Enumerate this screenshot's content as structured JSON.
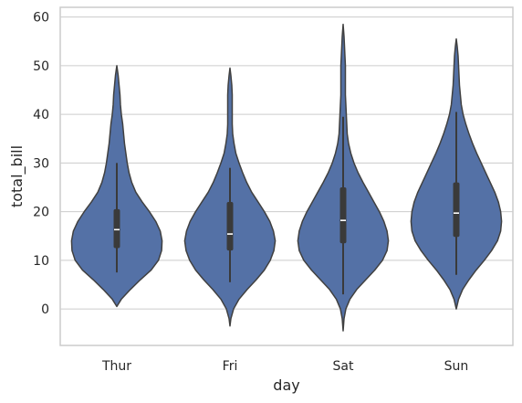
{
  "chart_data": {
    "type": "violin",
    "xlabel": "day",
    "ylabel": "total_bill",
    "categories": [
      "Thur",
      "Fri",
      "Sat",
      "Sun"
    ],
    "ylim": [
      -7.5,
      62
    ],
    "yticks": [
      0,
      10,
      20,
      30,
      40,
      50,
      60
    ],
    "grid": true,
    "colors": {
      "violin": "#5471a6",
      "outline": "#404040",
      "box": "#3a3a3a",
      "median": "#ffffff",
      "grid": "#cccccc",
      "frame": "#cccccc"
    },
    "violins": [
      {
        "category": "Thur",
        "range": [
          0.5,
          50
        ],
        "whisker": [
          7.5,
          30
        ],
        "q1": 12.5,
        "median": 16.3,
        "q3": 20.5,
        "density": [
          [
            0.5,
            0.0
          ],
          [
            2,
            0.1
          ],
          [
            4,
            0.3
          ],
          [
            6,
            0.52
          ],
          [
            8,
            0.76
          ],
          [
            10,
            0.92
          ],
          [
            12,
            0.99
          ],
          [
            14,
            1.0
          ],
          [
            16,
            0.96
          ],
          [
            18,
            0.86
          ],
          [
            20,
            0.72
          ],
          [
            22,
            0.56
          ],
          [
            24,
            0.42
          ],
          [
            26,
            0.33
          ],
          [
            28,
            0.27
          ],
          [
            30,
            0.23
          ],
          [
            32,
            0.2
          ],
          [
            34,
            0.17
          ],
          [
            36,
            0.15
          ],
          [
            38,
            0.13
          ],
          [
            40,
            0.1
          ],
          [
            42,
            0.08
          ],
          [
            44,
            0.07
          ],
          [
            46,
            0.05
          ],
          [
            48,
            0.03
          ],
          [
            50,
            0.0
          ]
        ]
      },
      {
        "category": "Fri",
        "range": [
          -3.5,
          49.5
        ],
        "whisker": [
          5.5,
          29
        ],
        "q1": 12,
        "median": 15.4,
        "q3": 22,
        "density": [
          [
            -3.5,
            0.0
          ],
          [
            -2,
            0.02
          ],
          [
            0,
            0.08
          ],
          [
            2,
            0.2
          ],
          [
            4,
            0.38
          ],
          [
            6,
            0.58
          ],
          [
            8,
            0.76
          ],
          [
            10,
            0.89
          ],
          [
            12,
            0.97
          ],
          [
            14,
            1.0
          ],
          [
            16,
            0.96
          ],
          [
            18,
            0.88
          ],
          [
            20,
            0.76
          ],
          [
            22,
            0.62
          ],
          [
            24,
            0.48
          ],
          [
            26,
            0.37
          ],
          [
            28,
            0.28
          ],
          [
            30,
            0.2
          ],
          [
            32,
            0.13
          ],
          [
            34,
            0.09
          ],
          [
            36,
            0.06
          ],
          [
            38,
            0.05
          ],
          [
            40,
            0.05
          ],
          [
            42,
            0.05
          ],
          [
            44,
            0.05
          ],
          [
            46,
            0.04
          ],
          [
            48,
            0.02
          ],
          [
            49.5,
            0.0
          ]
        ]
      },
      {
        "category": "Sat",
        "range": [
          -4.5,
          58.5
        ],
        "whisker": [
          3,
          39.5
        ],
        "q1": 13.5,
        "median": 18.2,
        "q3": 25,
        "density": [
          [
            -4.5,
            0.0
          ],
          [
            -2,
            0.02
          ],
          [
            0,
            0.06
          ],
          [
            2,
            0.15
          ],
          [
            4,
            0.3
          ],
          [
            6,
            0.5
          ],
          [
            8,
            0.7
          ],
          [
            10,
            0.87
          ],
          [
            12,
            0.97
          ],
          [
            14,
            1.0
          ],
          [
            16,
            0.97
          ],
          [
            18,
            0.9
          ],
          [
            20,
            0.8
          ],
          [
            22,
            0.68
          ],
          [
            24,
            0.56
          ],
          [
            26,
            0.44
          ],
          [
            28,
            0.33
          ],
          [
            30,
            0.24
          ],
          [
            32,
            0.17
          ],
          [
            34,
            0.12
          ],
          [
            36,
            0.09
          ],
          [
            38,
            0.08
          ],
          [
            40,
            0.07
          ],
          [
            42,
            0.06
          ],
          [
            44,
            0.05
          ],
          [
            46,
            0.05
          ],
          [
            48,
            0.05
          ],
          [
            50,
            0.05
          ],
          [
            52,
            0.04
          ],
          [
            54,
            0.03
          ],
          [
            56,
            0.02
          ],
          [
            58.5,
            0.0
          ]
        ]
      },
      {
        "category": "Sun",
        "range": [
          0,
          55.5
        ],
        "whisker": [
          7,
          40.5
        ],
        "q1": 14.8,
        "median": 19.7,
        "q3": 26,
        "density": [
          [
            0,
            0.0
          ],
          [
            2,
            0.05
          ],
          [
            4,
            0.14
          ],
          [
            6,
            0.28
          ],
          [
            8,
            0.44
          ],
          [
            10,
            0.62
          ],
          [
            12,
            0.78
          ],
          [
            14,
            0.91
          ],
          [
            16,
            0.98
          ],
          [
            18,
            1.0
          ],
          [
            20,
            0.98
          ],
          [
            22,
            0.93
          ],
          [
            24,
            0.85
          ],
          [
            26,
            0.75
          ],
          [
            28,
            0.65
          ],
          [
            30,
            0.55
          ],
          [
            32,
            0.45
          ],
          [
            34,
            0.36
          ],
          [
            36,
            0.28
          ],
          [
            38,
            0.21
          ],
          [
            40,
            0.15
          ],
          [
            42,
            0.11
          ],
          [
            44,
            0.09
          ],
          [
            46,
            0.07
          ],
          [
            48,
            0.06
          ],
          [
            50,
            0.05
          ],
          [
            52,
            0.04
          ],
          [
            54,
            0.02
          ],
          [
            55.5,
            0.0
          ]
        ]
      }
    ]
  }
}
